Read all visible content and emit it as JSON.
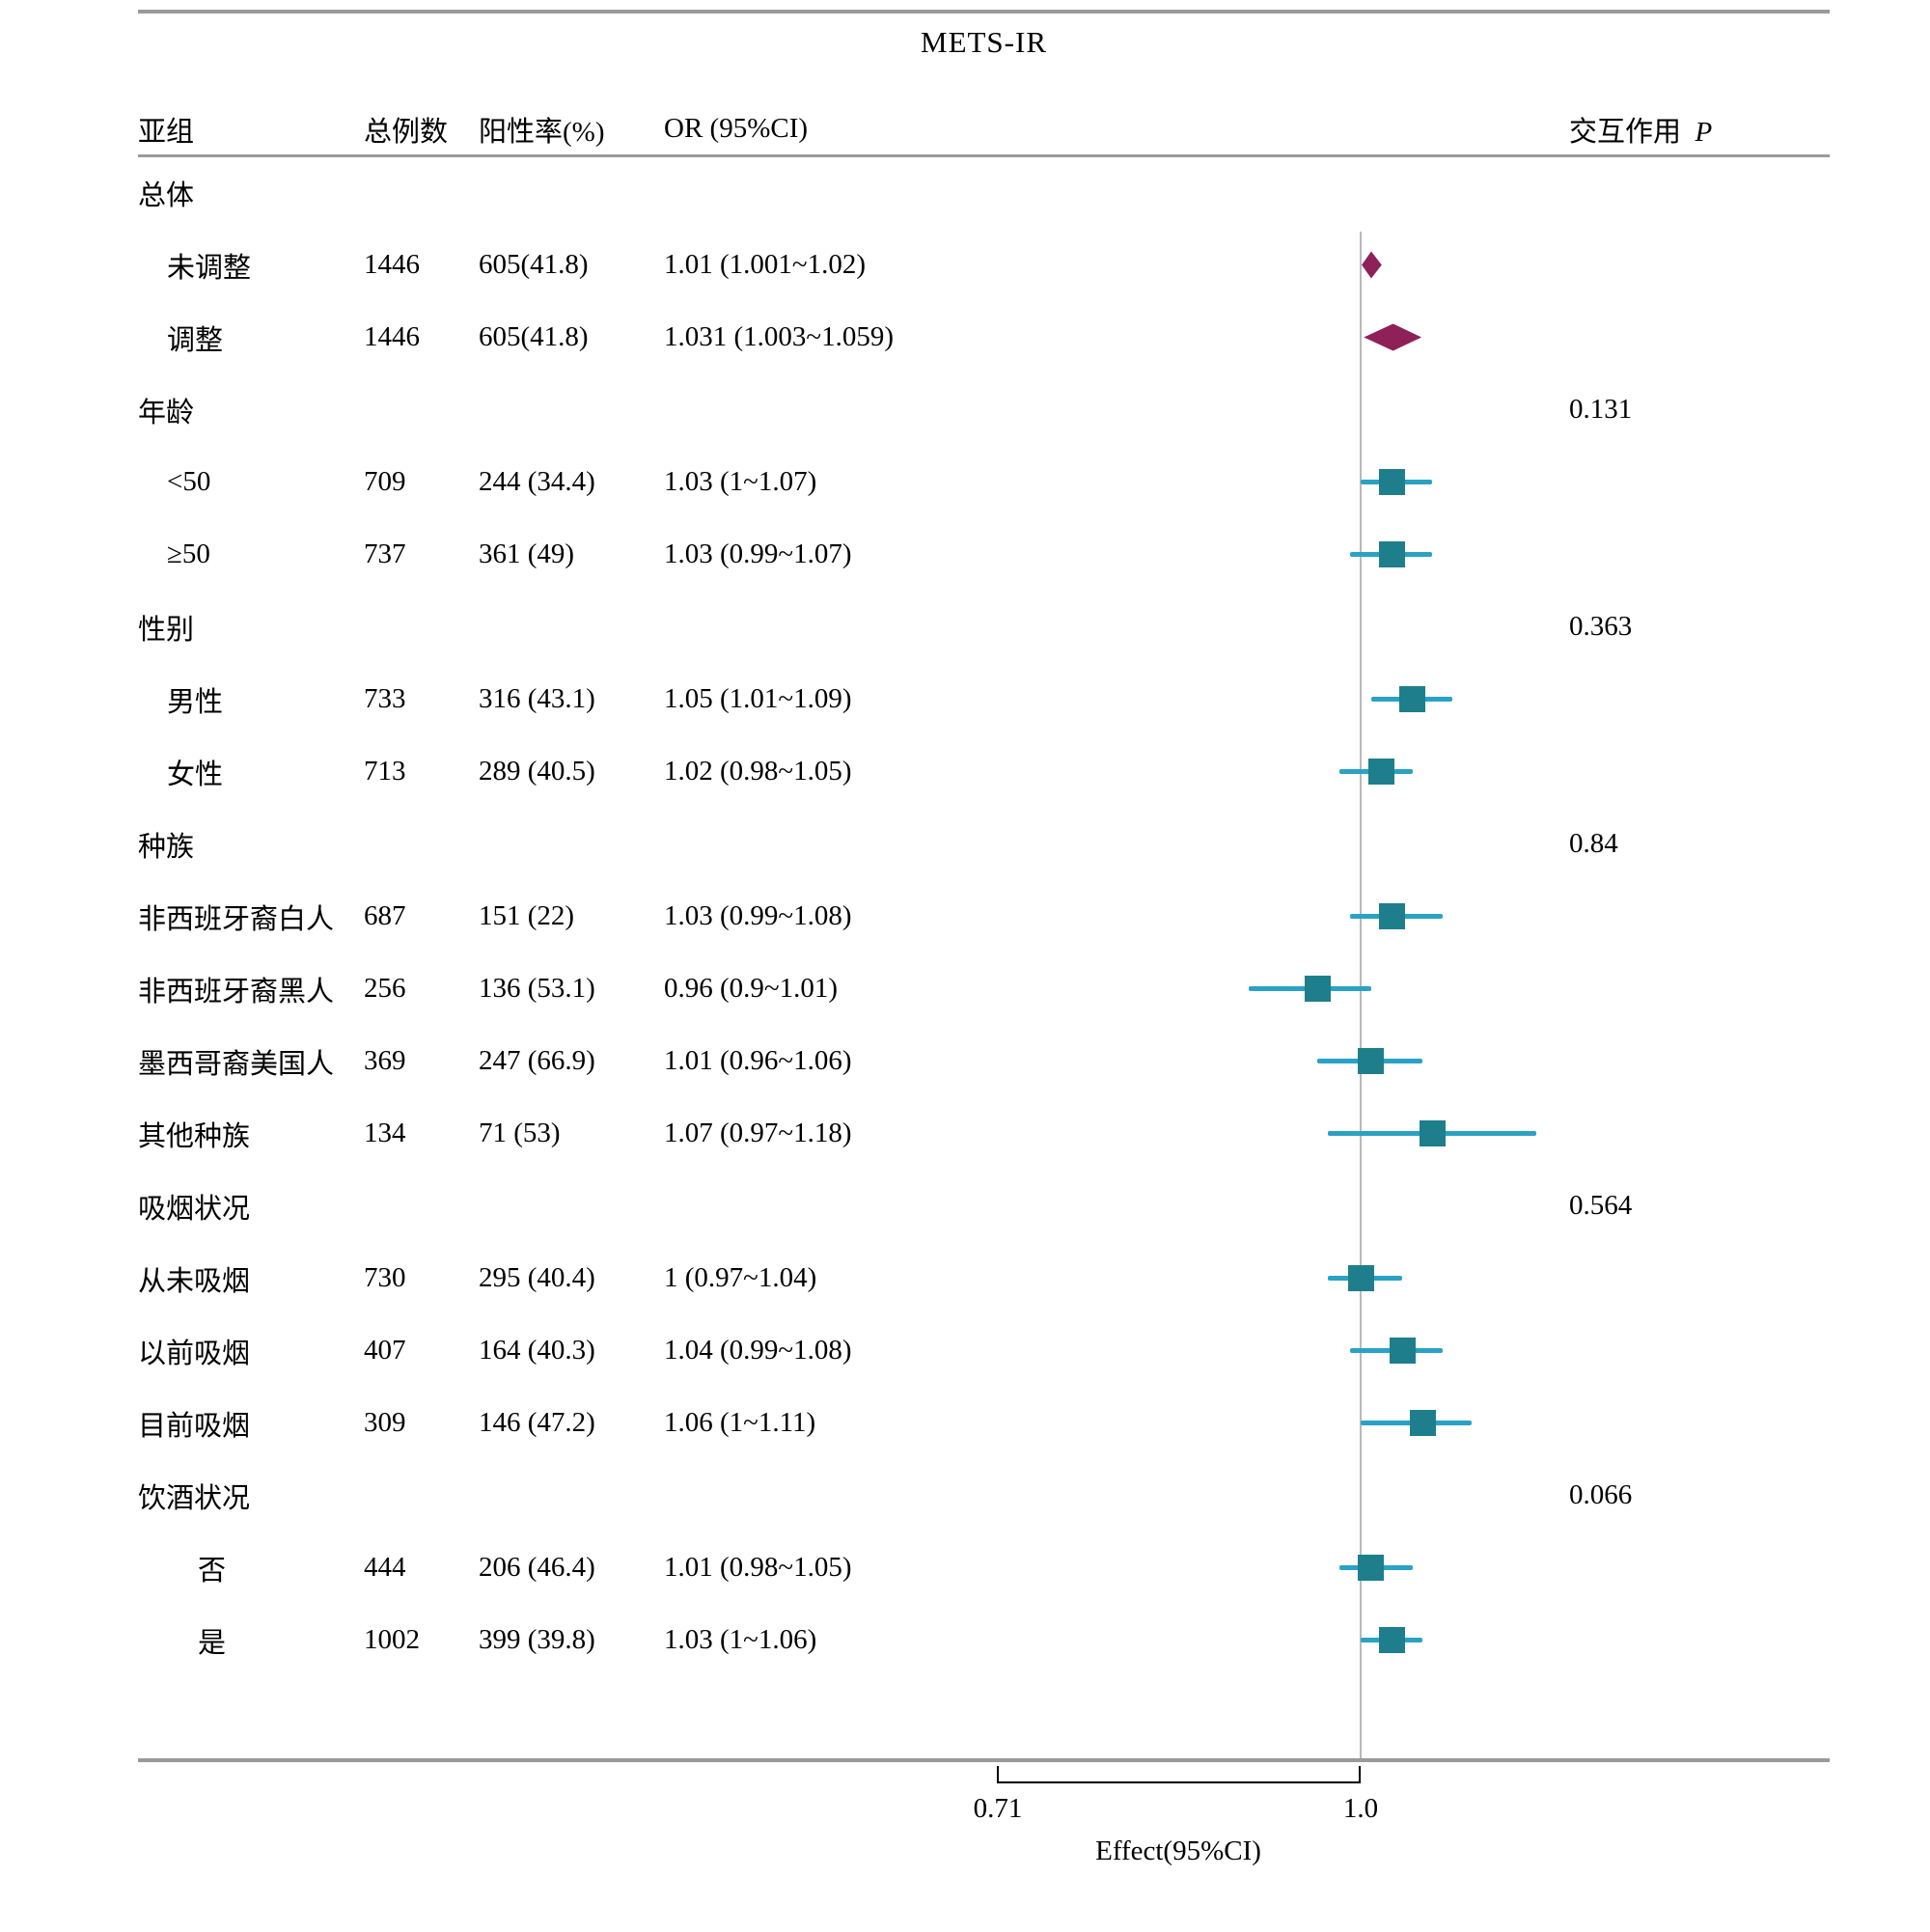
{
  "title": "METS-IR",
  "columns": {
    "subgroup": "亚组",
    "total": "总例数",
    "rate": "阳性率(%)",
    "or": "OR (95%CI)",
    "interaction": "交互作用",
    "p_symbol": "P"
  },
  "axis": {
    "tick_labels": [
      "0.71",
      "1.0"
    ],
    "tick_values": [
      0.71,
      1.0
    ],
    "label": "Effect(95%CI)",
    "reference_value": 1.0,
    "scale": "log"
  },
  "colors": {
    "square": "#1e7e8c",
    "ci_line": "#2aa2c5",
    "diamond": "#8e2158",
    "reference_line": "#b9b9b9",
    "rule": "#9a9a9a"
  },
  "chart_data": {
    "type": "forest",
    "x_axis": {
      "scale": "log",
      "ticks": [
        0.71,
        1.0
      ],
      "label": "Effect(95%CI)",
      "reference": 1.0
    },
    "rows": [
      {
        "type": "header",
        "label": "总体",
        "indent": 0
      },
      {
        "type": "diamond",
        "label": "未调整",
        "indent": 1,
        "n": "1446",
        "rate": "605(41.8)",
        "or_text": "1.01 (1.001~1.02)",
        "est": 1.01,
        "lo": 1.001,
        "hi": 1.02
      },
      {
        "type": "diamond",
        "label": "调整",
        "indent": 1,
        "n": "1446",
        "rate": "605(41.8)",
        "or_text": "1.031 (1.003~1.059)",
        "est": 1.031,
        "lo": 1.003,
        "hi": 1.059
      },
      {
        "type": "header",
        "label": "年龄",
        "indent": 0,
        "p": "0.131"
      },
      {
        "type": "square",
        "label": "<50",
        "indent": 1,
        "n": "709",
        "rate": "244 (34.4)",
        "or_text": "1.03 (1~1.07)",
        "est": 1.03,
        "lo": 1.0,
        "hi": 1.07
      },
      {
        "type": "square",
        "label": "≥50",
        "indent": 1,
        "n": "737",
        "rate": "361 (49)",
        "or_text": "1.03 (0.99~1.07)",
        "est": 1.03,
        "lo": 0.99,
        "hi": 1.07
      },
      {
        "type": "header",
        "label": "性别",
        "indent": 0,
        "p": "0.363"
      },
      {
        "type": "square",
        "label": "男性",
        "indent": 1,
        "n": "733",
        "rate": "316 (43.1)",
        "or_text": "1.05 (1.01~1.09)",
        "est": 1.05,
        "lo": 1.01,
        "hi": 1.09
      },
      {
        "type": "square",
        "label": "女性",
        "indent": 1,
        "n": "713",
        "rate": "289 (40.5)",
        "or_text": "1.02 (0.98~1.05)",
        "est": 1.02,
        "lo": 0.98,
        "hi": 1.05
      },
      {
        "type": "header",
        "label": "种族",
        "indent": 0,
        "p": "0.84"
      },
      {
        "type": "square",
        "label": "非西班牙裔白人",
        "indent": 0,
        "n": "687",
        "rate": "151 (22)",
        "or_text": "1.03 (0.99~1.08)",
        "est": 1.03,
        "lo": 0.99,
        "hi": 1.08
      },
      {
        "type": "square",
        "label": "非西班牙裔黑人",
        "indent": 0,
        "n": "256",
        "rate": "136 (53.1)",
        "or_text": "0.96 (0.9~1.01)",
        "est": 0.96,
        "lo": 0.9,
        "hi": 1.01
      },
      {
        "type": "square",
        "label": "墨西哥裔美国人",
        "indent": 0,
        "n": "369",
        "rate": "247 (66.9)",
        "or_text": "1.01 (0.96~1.06)",
        "est": 1.01,
        "lo": 0.96,
        "hi": 1.06
      },
      {
        "type": "square",
        "label": "其他种族",
        "indent": 0,
        "n": "134",
        "rate": "71 (53)",
        "or_text": "1.07 (0.97~1.18)",
        "est": 1.07,
        "lo": 0.97,
        "hi": 1.18
      },
      {
        "type": "header",
        "label": "吸烟状况",
        "indent": 0,
        "p": "0.564"
      },
      {
        "type": "square",
        "label": "从未吸烟",
        "indent": 0,
        "n": "730",
        "rate": "295 (40.4)",
        "or_text": "1 (0.97~1.04)",
        "est": 1.0,
        "lo": 0.97,
        "hi": 1.04
      },
      {
        "type": "square",
        "label": "以前吸烟",
        "indent": 0,
        "n": "407",
        "rate": "164 (40.3)",
        "or_text": "1.04 (0.99~1.08)",
        "est": 1.04,
        "lo": 0.99,
        "hi": 1.08
      },
      {
        "type": "square",
        "label": "目前吸烟",
        "indent": 0,
        "n": "309",
        "rate": "146 (47.2)",
        "or_text": "1.06 (1~1.11)",
        "est": 1.06,
        "lo": 1.0,
        "hi": 1.11
      },
      {
        "type": "header",
        "label": "饮酒状况",
        "indent": 0,
        "p": "0.066"
      },
      {
        "type": "square",
        "label": "否",
        "indent": 2,
        "n": "444",
        "rate": "206 (46.4)",
        "or_text": "1.01 (0.98~1.05)",
        "est": 1.01,
        "lo": 0.98,
        "hi": 1.05
      },
      {
        "type": "square",
        "label": "是",
        "indent": 2,
        "n": "1002",
        "rate": "399 (39.8)",
        "or_text": "1.03 (1~1.06)",
        "est": 1.03,
        "lo": 1.0,
        "hi": 1.06
      }
    ]
  }
}
